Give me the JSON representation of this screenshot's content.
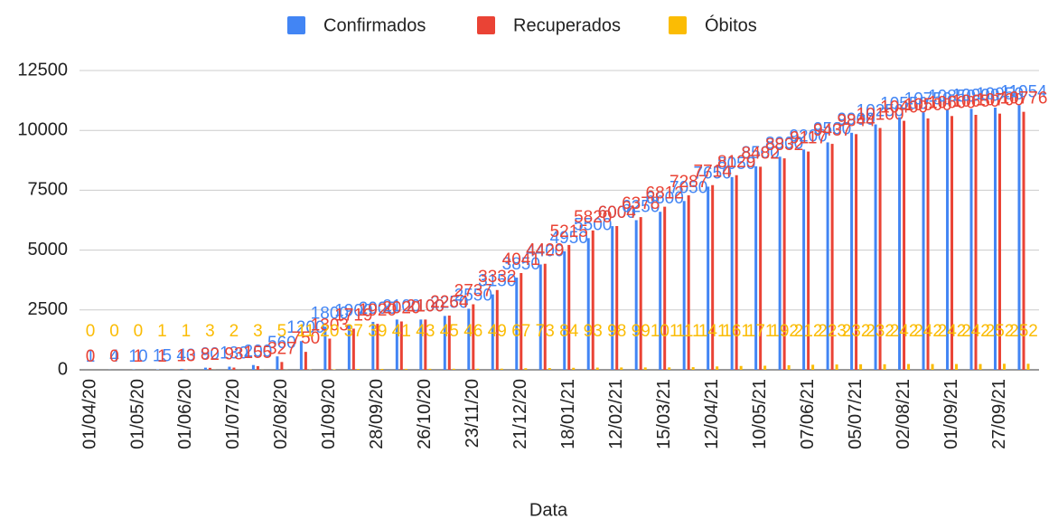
{
  "chart_data": {
    "type": "bar",
    "x_label": "Data",
    "categories": [
      "01/04/20",
      null,
      "01/05/20",
      null,
      "01/06/20",
      null,
      "01/07/20",
      null,
      "02/08/20",
      null,
      "01/09/20",
      null,
      "28/09/20",
      null,
      "26/10/20",
      null,
      "23/11/20",
      null,
      "21/12/20",
      null,
      "18/01/21",
      null,
      "12/02/21",
      null,
      "15/03/21",
      null,
      "12/04/21",
      null,
      "10/05/21",
      null,
      "07/06/21",
      null,
      "05/07/21",
      null,
      "02/08/21",
      null,
      "01/09/21",
      null,
      "27/09/21",
      null
    ],
    "series": [
      {
        "name": "Confirmados",
        "color": "#4285f4",
        "values": [
          1,
          4,
          10,
          15,
          40,
          90,
          130,
          200,
          560,
          1200,
          1800,
          1900,
          2000,
          2100,
          2100,
          2250,
          2550,
          3150,
          3850,
          4400,
          4950,
          5500,
          6000,
          6250,
          6600,
          7050,
          7650,
          8050,
          8500,
          8900,
          9200,
          9500,
          9900,
          10250,
          10550,
          10750,
          10850,
          10900,
          10950,
          11054
        ]
      },
      {
        "name": "Recuperados",
        "color": "#ea4335",
        "values": [
          0,
          0,
          1,
          1,
          13,
          82,
          93,
          155,
          327,
          750,
          1303,
          1719,
          1920,
          2020,
          2100,
          2264,
          2737,
          3332,
          4041,
          4429,
          5215,
          5820,
          6004,
          6378,
          6812,
          7287,
          7714,
          8129,
          8482,
          8832,
          9117,
          9437,
          9844,
          10100,
          10400,
          10500,
          10600,
          10650,
          10700,
          10776
        ]
      },
      {
        "name": "Óbitos",
        "color": "#fbbc04",
        "values": [
          0,
          0,
          0,
          1,
          1,
          3,
          2,
          3,
          5,
          11,
          20,
          37,
          39,
          41,
          43,
          45,
          46,
          49,
          67,
          73,
          84,
          93,
          98,
          99,
          101,
          111,
          141,
          161,
          171,
          192,
          212,
          223,
          232,
          232,
          242,
          242,
          242,
          242,
          252,
          252
        ]
      }
    ],
    "ylim": [
      0,
      12500
    ],
    "yticks": [
      0,
      2500,
      5000,
      7500,
      10000,
      12500
    ],
    "grid": true
  }
}
